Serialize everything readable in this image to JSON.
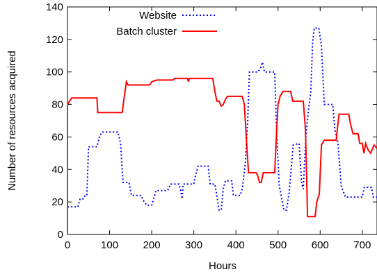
{
  "chart_data": {
    "type": "line",
    "title": "",
    "xlabel": "Hours",
    "ylabel": "Number of resources acquired",
    "xlim": [
      0,
      735
    ],
    "ylim": [
      0,
      140
    ],
    "xticks": [
      0,
      100,
      200,
      300,
      400,
      500,
      600,
      700
    ],
    "yticks": [
      0,
      20,
      40,
      60,
      80,
      100,
      120,
      140
    ],
    "x_tick_labels": [
      "0",
      "100",
      "200",
      "300",
      "400",
      "500",
      "600",
      "700"
    ],
    "y_tick_labels": [
      "0",
      "20",
      "40",
      "60",
      "80",
      "100",
      "120",
      "140"
    ],
    "legend_position": "top-right",
    "grid": false,
    "series": [
      {
        "name": "Website",
        "color": "#0000ff",
        "style": "dotted",
        "points": [
          [
            0,
            0
          ],
          [
            0,
            17
          ],
          [
            25,
            17
          ],
          [
            30,
            22
          ],
          [
            38,
            22
          ],
          [
            42,
            24
          ],
          [
            46,
            24
          ],
          [
            50,
            54
          ],
          [
            70,
            54
          ],
          [
            76,
            60
          ],
          [
            82,
            63
          ],
          [
            120,
            63
          ],
          [
            126,
            56
          ],
          [
            132,
            32
          ],
          [
            146,
            32
          ],
          [
            152,
            24
          ],
          [
            175,
            24
          ],
          [
            180,
            21
          ],
          [
            188,
            18
          ],
          [
            200,
            18
          ],
          [
            205,
            22
          ],
          [
            210,
            27
          ],
          [
            238,
            27
          ],
          [
            245,
            31
          ],
          [
            265,
            31
          ],
          [
            268,
            28
          ],
          [
            272,
            22
          ],
          [
            275,
            31
          ],
          [
            300,
            31
          ],
          [
            302,
            34
          ],
          [
            310,
            42
          ],
          [
            334,
            42
          ],
          [
            339,
            31
          ],
          [
            350,
            31
          ],
          [
            356,
            22
          ],
          [
            360,
            15
          ],
          [
            365,
            15
          ],
          [
            370,
            28
          ],
          [
            375,
            33
          ],
          [
            390,
            33
          ],
          [
            394,
            24
          ],
          [
            410,
            24
          ],
          [
            415,
            28
          ],
          [
            422,
            43
          ],
          [
            428,
            70
          ],
          [
            432,
            100
          ],
          [
            452,
            100
          ],
          [
            458,
            102
          ],
          [
            463,
            106
          ],
          [
            468,
            100
          ],
          [
            492,
            100
          ],
          [
            497,
            60
          ],
          [
            503,
            30
          ],
          [
            510,
            20
          ],
          [
            514,
            15
          ],
          [
            520,
            15
          ],
          [
            526,
            25
          ],
          [
            536,
            55
          ],
          [
            550,
            56
          ],
          [
            556,
            32
          ],
          [
            560,
            28
          ],
          [
            566,
            60
          ],
          [
            572,
            76
          ],
          [
            578,
            88
          ],
          [
            582,
            118
          ],
          [
            586,
            127
          ],
          [
            597,
            127
          ],
          [
            603,
            116
          ],
          [
            606,
            100
          ],
          [
            610,
            80
          ],
          [
            630,
            80
          ],
          [
            635,
            64
          ],
          [
            642,
            57
          ],
          [
            650,
            30
          ],
          [
            660,
            23
          ],
          [
            700,
            23
          ],
          [
            705,
            29
          ],
          [
            722,
            29
          ],
          [
            726,
            23
          ],
          [
            730,
            23
          ],
          [
            735,
            23
          ]
        ]
      },
      {
        "name": "Batch cluster",
        "color": "#ff0000",
        "style": "solid",
        "points": [
          [
            0,
            0
          ],
          [
            0,
            80
          ],
          [
            5,
            82
          ],
          [
            10,
            84
          ],
          [
            70,
            84
          ],
          [
            72,
            75
          ],
          [
            130,
            75
          ],
          [
            135,
            85
          ],
          [
            140,
            94
          ],
          [
            144,
            92
          ],
          [
            195,
            92
          ],
          [
            200,
            94
          ],
          [
            212,
            95
          ],
          [
            250,
            95
          ],
          [
            254,
            96
          ],
          [
            285,
            96
          ],
          [
            287,
            94
          ],
          [
            289,
            96
          ],
          [
            345,
            96
          ],
          [
            350,
            88
          ],
          [
            355,
            82
          ],
          [
            360,
            82
          ],
          [
            365,
            79
          ],
          [
            370,
            80
          ],
          [
            375,
            83
          ],
          [
            380,
            85
          ],
          [
            415,
            85
          ],
          [
            420,
            80
          ],
          [
            425,
            58
          ],
          [
            430,
            38
          ],
          [
            448,
            38
          ],
          [
            452,
            36
          ],
          [
            456,
            32
          ],
          [
            460,
            32
          ],
          [
            465,
            38
          ],
          [
            492,
            38
          ],
          [
            496,
            60
          ],
          [
            500,
            80
          ],
          [
            505,
            85
          ],
          [
            512,
            88
          ],
          [
            530,
            88
          ],
          [
            535,
            82
          ],
          [
            560,
            82
          ],
          [
            565,
            65
          ],
          [
            568,
            35
          ],
          [
            570,
            11
          ],
          [
            588,
            11
          ],
          [
            592,
            20
          ],
          [
            598,
            25
          ],
          [
            603,
            55
          ],
          [
            610,
            58
          ],
          [
            638,
            58
          ],
          [
            643,
            70
          ],
          [
            645,
            74
          ],
          [
            668,
            74
          ],
          [
            672,
            68
          ],
          [
            678,
            62
          ],
          [
            690,
            62
          ],
          [
            694,
            56
          ],
          [
            700,
            56
          ],
          [
            704,
            50
          ],
          [
            708,
            56
          ],
          [
            714,
            52
          ],
          [
            720,
            50
          ],
          [
            728,
            55
          ],
          [
            735,
            53
          ]
        ]
      }
    ]
  }
}
